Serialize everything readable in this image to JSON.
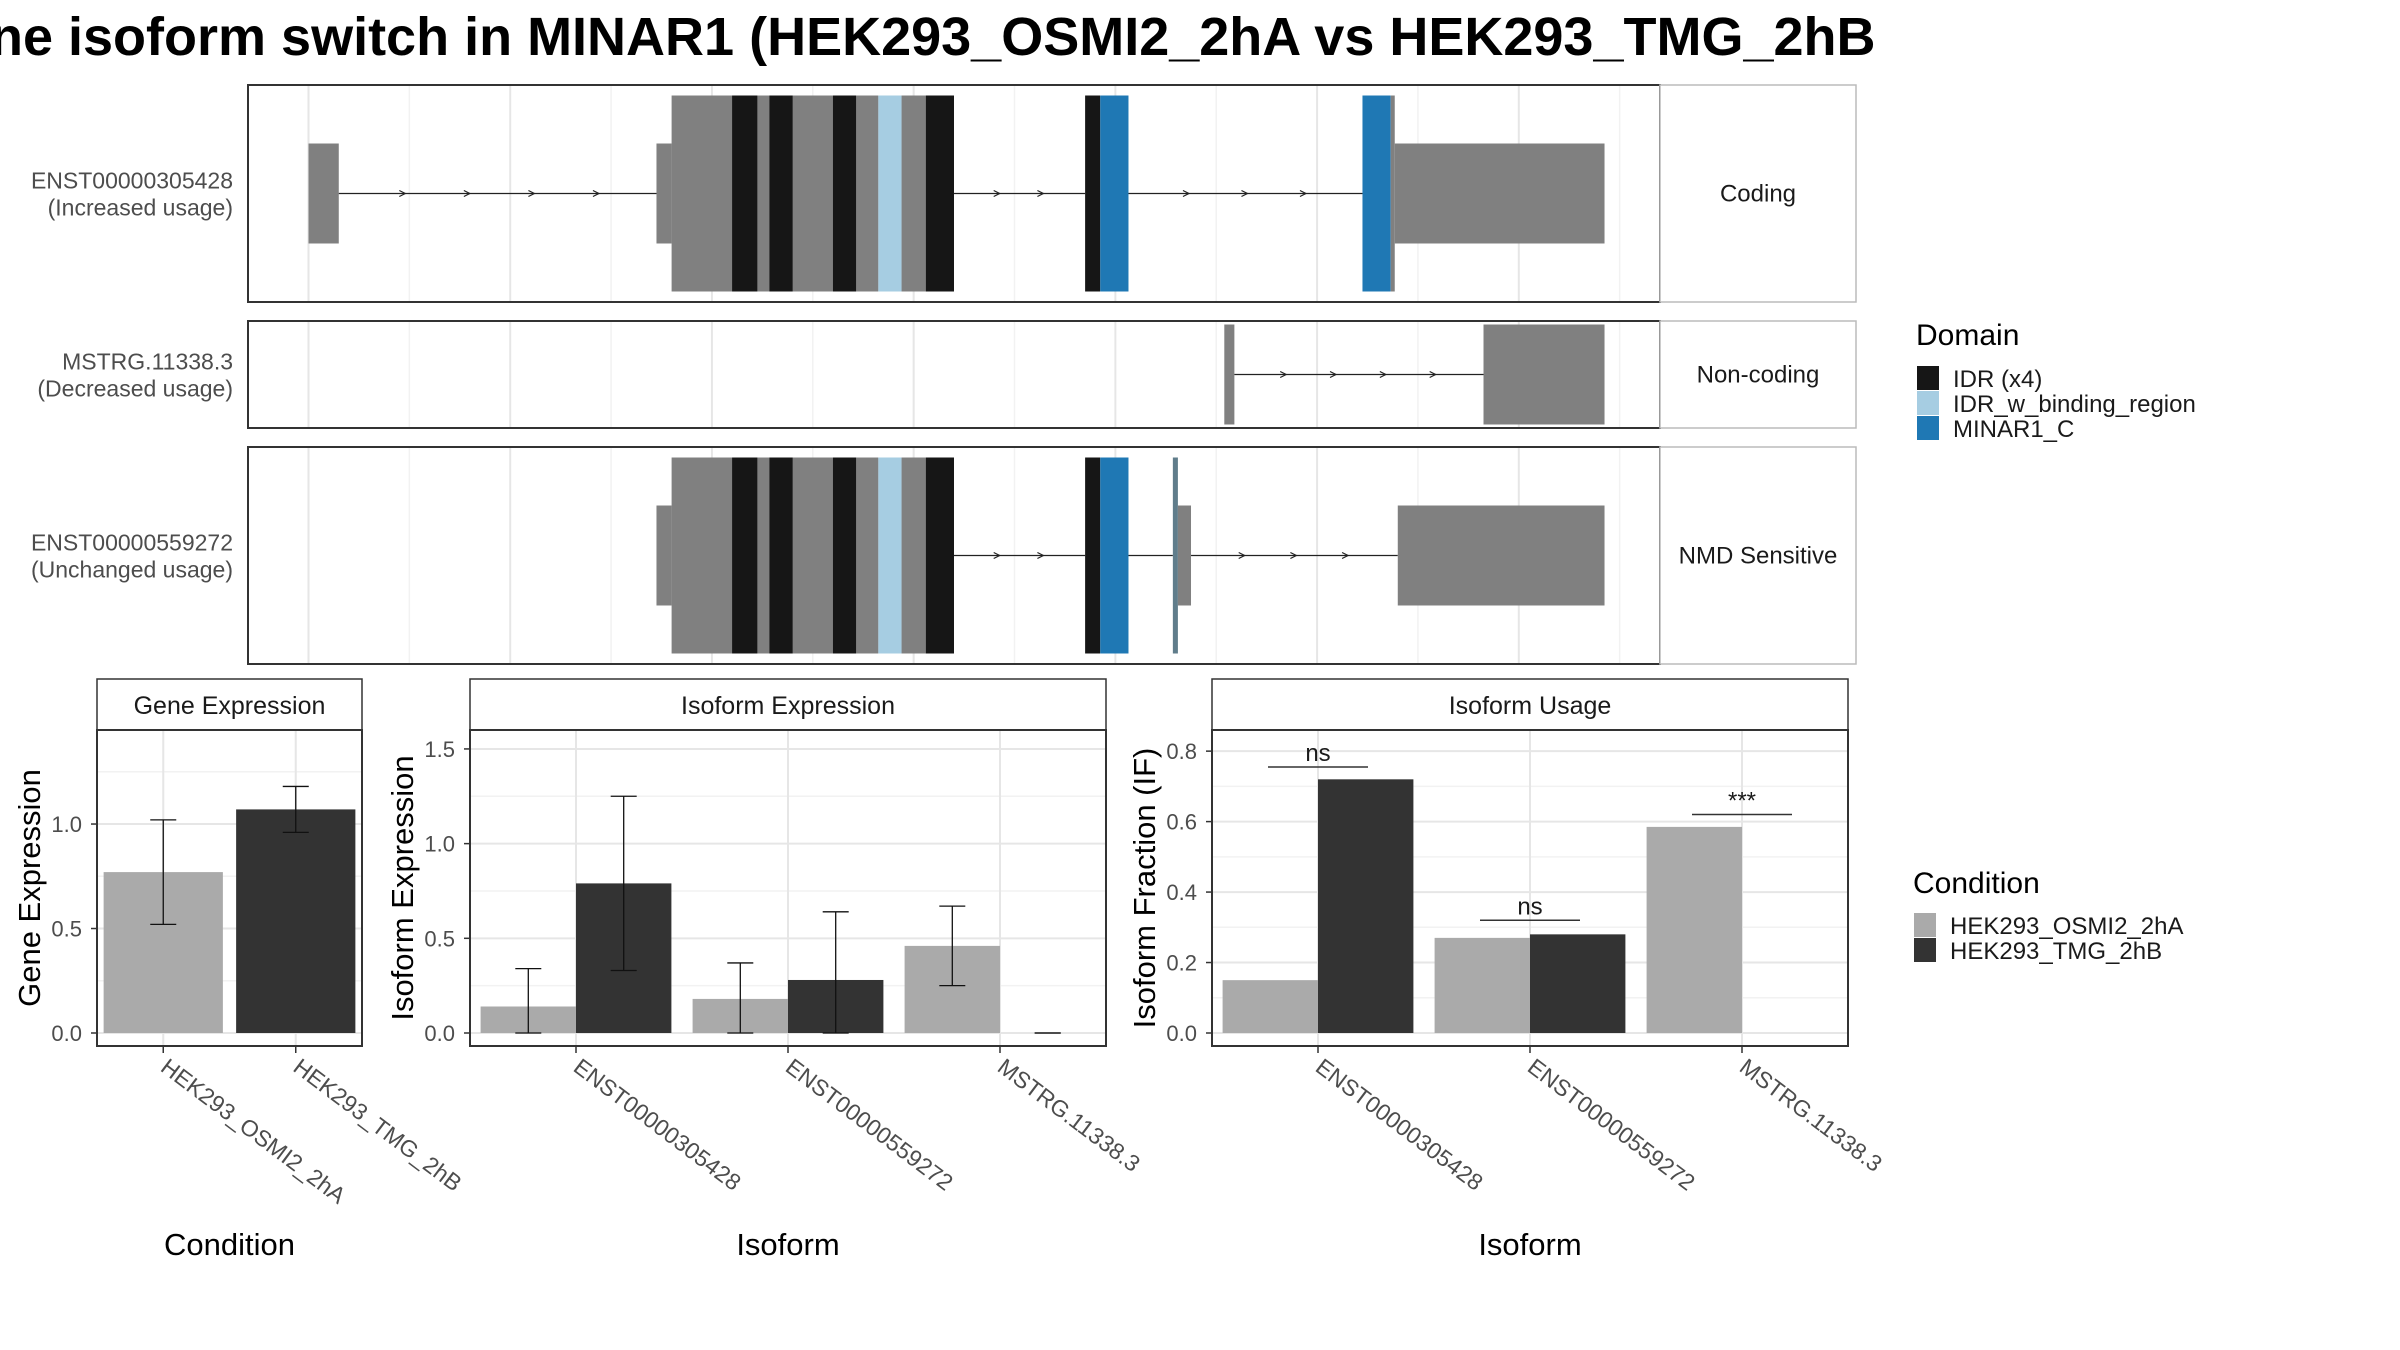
{
  "title": "ne isoform switch in MINAR1 (HEK293_OSMI2_2hA vs HEK293_TMG_2hB",
  "colors": {
    "exon": "#808080",
    "idr": "#161616",
    "idr_binding": "#a6cde2",
    "minar1_c": "#1f78b4",
    "cond_a": "#aaaaaa",
    "cond_b": "#333333"
  },
  "structure": {
    "tracks": [
      {
        "id_label": "ENST00000305428",
        "usage_label": "(Increased usage)",
        "strip": "Coding",
        "thin": [
          [
            1,
            15
          ]
        ],
        "thick": [
          [
            359,
            389
          ],
          [
            390,
            520
          ],
          [
            691,
            699
          ],
          [
            716,
            718
          ]
        ],
        "introns": [
          [
            15,
            359
          ],
          [
            520,
            618
          ],
          [
            699,
            716
          ]
        ],
        "domains": [
          {
            "type": "idr",
            "range": [
              396,
              415
            ]
          },
          {
            "type": "idr",
            "range": [
              414,
              425
            ]
          },
          {
            "type": "idr",
            "range": [
              418,
              432
            ]
          },
          {
            "type": "idr_binding",
            "range": [
              445,
              457
            ]
          },
          {
            "type": "idr",
            "range": [
              457,
              483
            ]
          },
          {
            "type": "idr",
            "range": [
              465,
              467
            ]
          },
          {
            "type": "idr",
            "range": [
              619,
              627
            ]
          },
          {
            "type": "minar1_c",
            "range": [
              626,
              643
            ]
          },
          {
            "type": "minar1_c",
            "range": [
              699,
              716
            ]
          }
        ]
      },
      {
        "id_label": "MSTRG.11338.3",
        "usage_label": "(Decreased usage)",
        "strip": "Non-coding",
        "thin": [],
        "thick": [],
        "introns": [
          [
            707,
            768
          ]
        ],
        "domains": []
      },
      {
        "id_label": "ENST00000559272",
        "usage_label": "(Unchanged usage)",
        "strip": "NMD Sensitive",
        "thin": [
          [
            357,
            366
          ],
          [
            657,
            658
          ],
          [
            748,
            783
          ]
        ],
        "thick": [
          [
            359,
            389
          ],
          [
            390,
            520
          ],
          [
            637,
            645
          ],
          [
            654,
            664
          ]
        ],
        "introns": [
          [
            520,
            615
          ],
          [
            645,
            650
          ],
          [
            664,
            700
          ]
        ],
        "domains": [
          {
            "type": "idr",
            "range": [
              396,
              415
            ]
          },
          {
            "type": "idr",
            "range": [
              414,
              425
            ]
          },
          {
            "type": "idr",
            "range": [
              418,
              432
            ]
          },
          {
            "type": "idr_binding",
            "range": [
              445,
              457
            ]
          },
          {
            "type": "idr",
            "range": [
              457,
              483
            ]
          },
          {
            "type": "idr",
            "range": [
              465,
              467
            ]
          },
          {
            "type": "idr",
            "range": [
              619,
              627
            ]
          },
          {
            "type": "minar1_c",
            "range": [
              626,
              643
            ]
          }
        ]
      }
    ]
  },
  "legends": {
    "domain": {
      "title": "Domain",
      "items": [
        {
          "label": "IDR (x4)",
          "color_key": "idr"
        },
        {
          "label": "IDR_w_binding_region",
          "color_key": "idr_binding"
        },
        {
          "label": "MINAR1_C",
          "color_key": "minar1_c"
        }
      ]
    },
    "condition": {
      "title": "Condition",
      "items": [
        {
          "label": "HEK293_OSMI2_2hA",
          "color_key": "cond_a"
        },
        {
          "label": "HEK293_TMG_2hB",
          "color_key": "cond_b"
        }
      ]
    }
  },
  "chart_data": [
    {
      "type": "bar",
      "title": "Gene Expression",
      "xlabel": "Condition",
      "ylabel": "Gene Expression",
      "ylim": [
        0,
        1.45
      ],
      "yticks": [
        "0.0",
        "0.5",
        "1.0"
      ],
      "categories": [
        "HEK293_OSMI2_2hA",
        "HEK293_TMG_2hB"
      ],
      "series": [
        {
          "name": "HEK293_OSMI2_2hA",
          "values": [
            0.77,
            null
          ],
          "errors": [
            [
              0.52,
              1.02
            ],
            null
          ]
        },
        {
          "name": "HEK293_TMG_2hB",
          "values": [
            null,
            1.07
          ],
          "errors": [
            null,
            [
              0.96,
              1.18
            ]
          ]
        }
      ],
      "grid": true
    },
    {
      "type": "bar",
      "title": "Isoform Expression",
      "xlabel": "Isoform",
      "ylabel": "Isoform Expression",
      "ylim": [
        0,
        1.6
      ],
      "yticks": [
        "0.0",
        "0.5",
        "1.0",
        "1.5"
      ],
      "categories": [
        "ENST00000305428",
        "ENST00000559272",
        "MSTRG.11338.3"
      ],
      "series": [
        {
          "name": "HEK293_OSMI2_2hA",
          "values": [
            0.14,
            0.18,
            0.46
          ],
          "errors": [
            [
              0.0,
              0.34
            ],
            [
              0.0,
              0.37
            ],
            [
              0.25,
              0.67
            ]
          ]
        },
        {
          "name": "HEK293_TMG_2hB",
          "values": [
            0.79,
            0.28,
            0.0
          ],
          "errors": [
            [
              0.33,
              1.25
            ],
            [
              0.0,
              0.64
            ],
            [
              0.0,
              0.0
            ]
          ]
        }
      ],
      "grid": true
    },
    {
      "type": "bar",
      "title": "Isoform Usage",
      "xlabel": "Isoform",
      "ylabel": "Isoform Fraction (IF)",
      "ylim": [
        0,
        0.86
      ],
      "yticks": [
        "0.0",
        "0.2",
        "0.4",
        "0.6",
        "0.8"
      ],
      "categories": [
        "ENST00000305428",
        "ENST00000559272",
        "MSTRG.11338.3"
      ],
      "series": [
        {
          "name": "HEK293_OSMI2_2hA",
          "values": [
            0.15,
            0.27,
            0.585
          ]
        },
        {
          "name": "HEK293_TMG_2hB",
          "values": [
            0.72,
            0.28,
            0.0
          ]
        }
      ],
      "significance": [
        {
          "category_index": 0,
          "label": "ns",
          "y": 0.755
        },
        {
          "category_index": 1,
          "label": "ns",
          "y": 0.32
        },
        {
          "category_index": 2,
          "label": "***",
          "y": 0.62
        }
      ],
      "grid": true
    }
  ]
}
